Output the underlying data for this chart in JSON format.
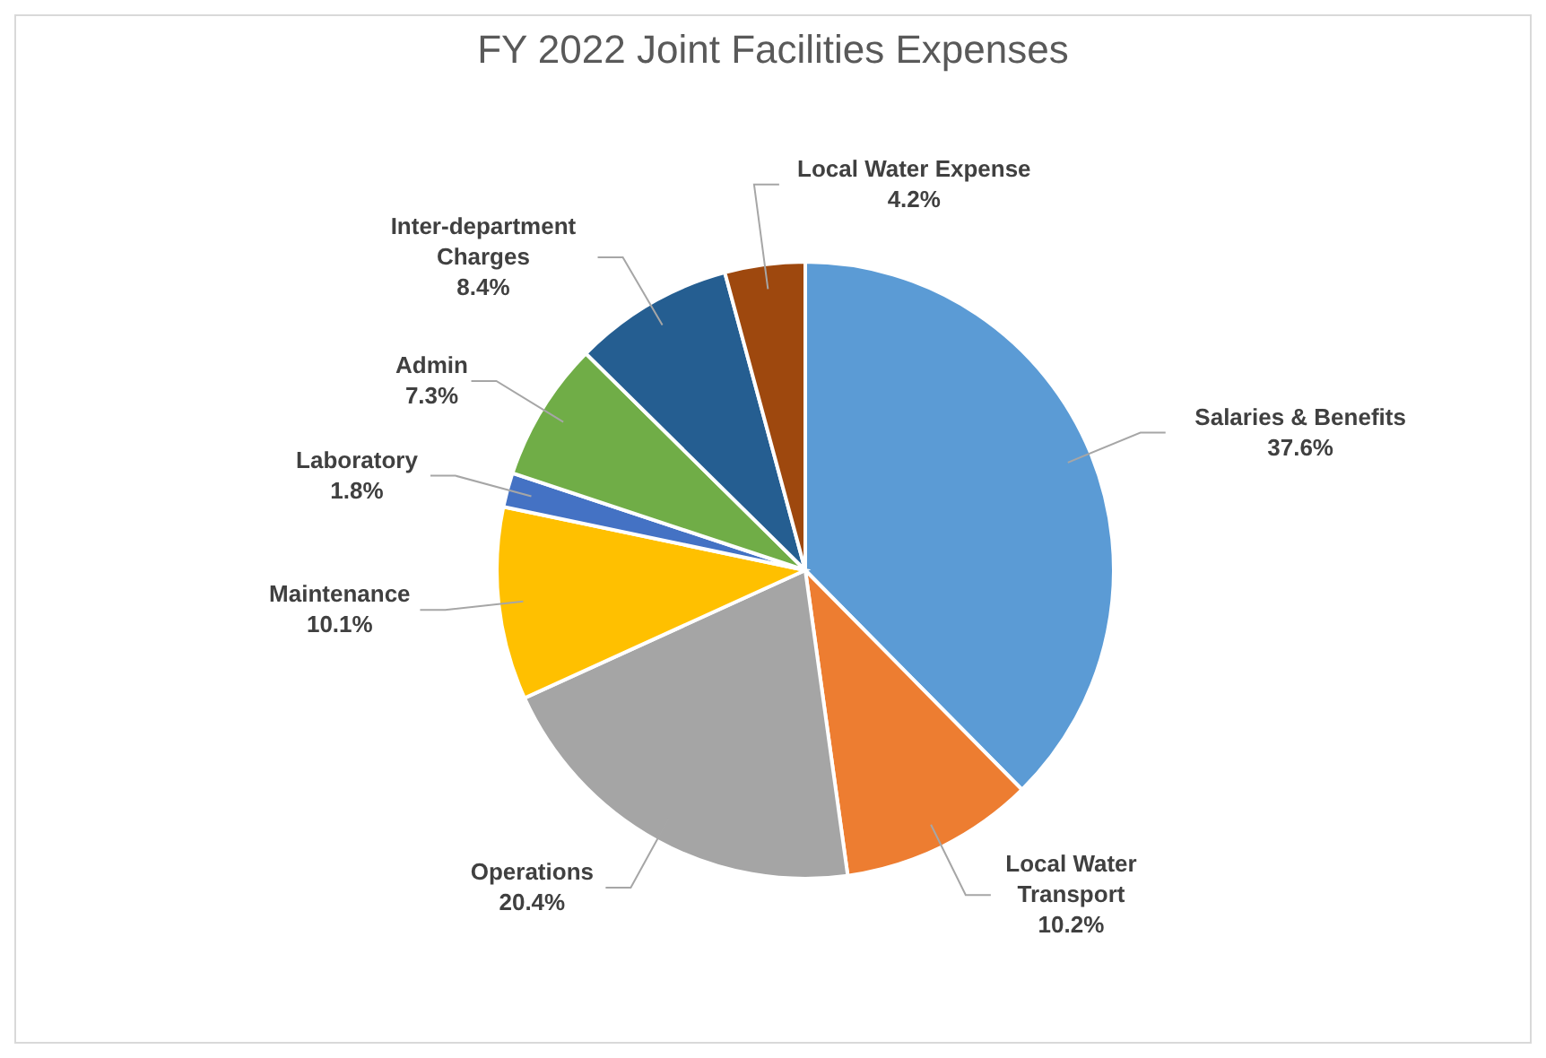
{
  "chart_data": {
    "type": "pie",
    "title": "FY 2022 Joint Facilities Expenses",
    "categories": [
      "Salaries & Benefits",
      "Local Water Transport",
      "Operations",
      "Maintenance",
      "Laboratory",
      "Admin",
      "Inter-department Charges",
      "Local Water Expense"
    ],
    "values": [
      37.6,
      10.2,
      20.4,
      10.1,
      1.8,
      7.3,
      8.4,
      4.2
    ],
    "value_labels": [
      "37.6%",
      "10.2%",
      "20.4%",
      "10.1%",
      "1.8%",
      "7.3%",
      "8.4%",
      "4.2%"
    ],
    "colors": [
      "#5b9bd5",
      "#ed7d31",
      "#a5a5a5",
      "#ffc000",
      "#4472c4",
      "#70ad47",
      "#255e91",
      "#9e480e"
    ],
    "legend": false
  }
}
